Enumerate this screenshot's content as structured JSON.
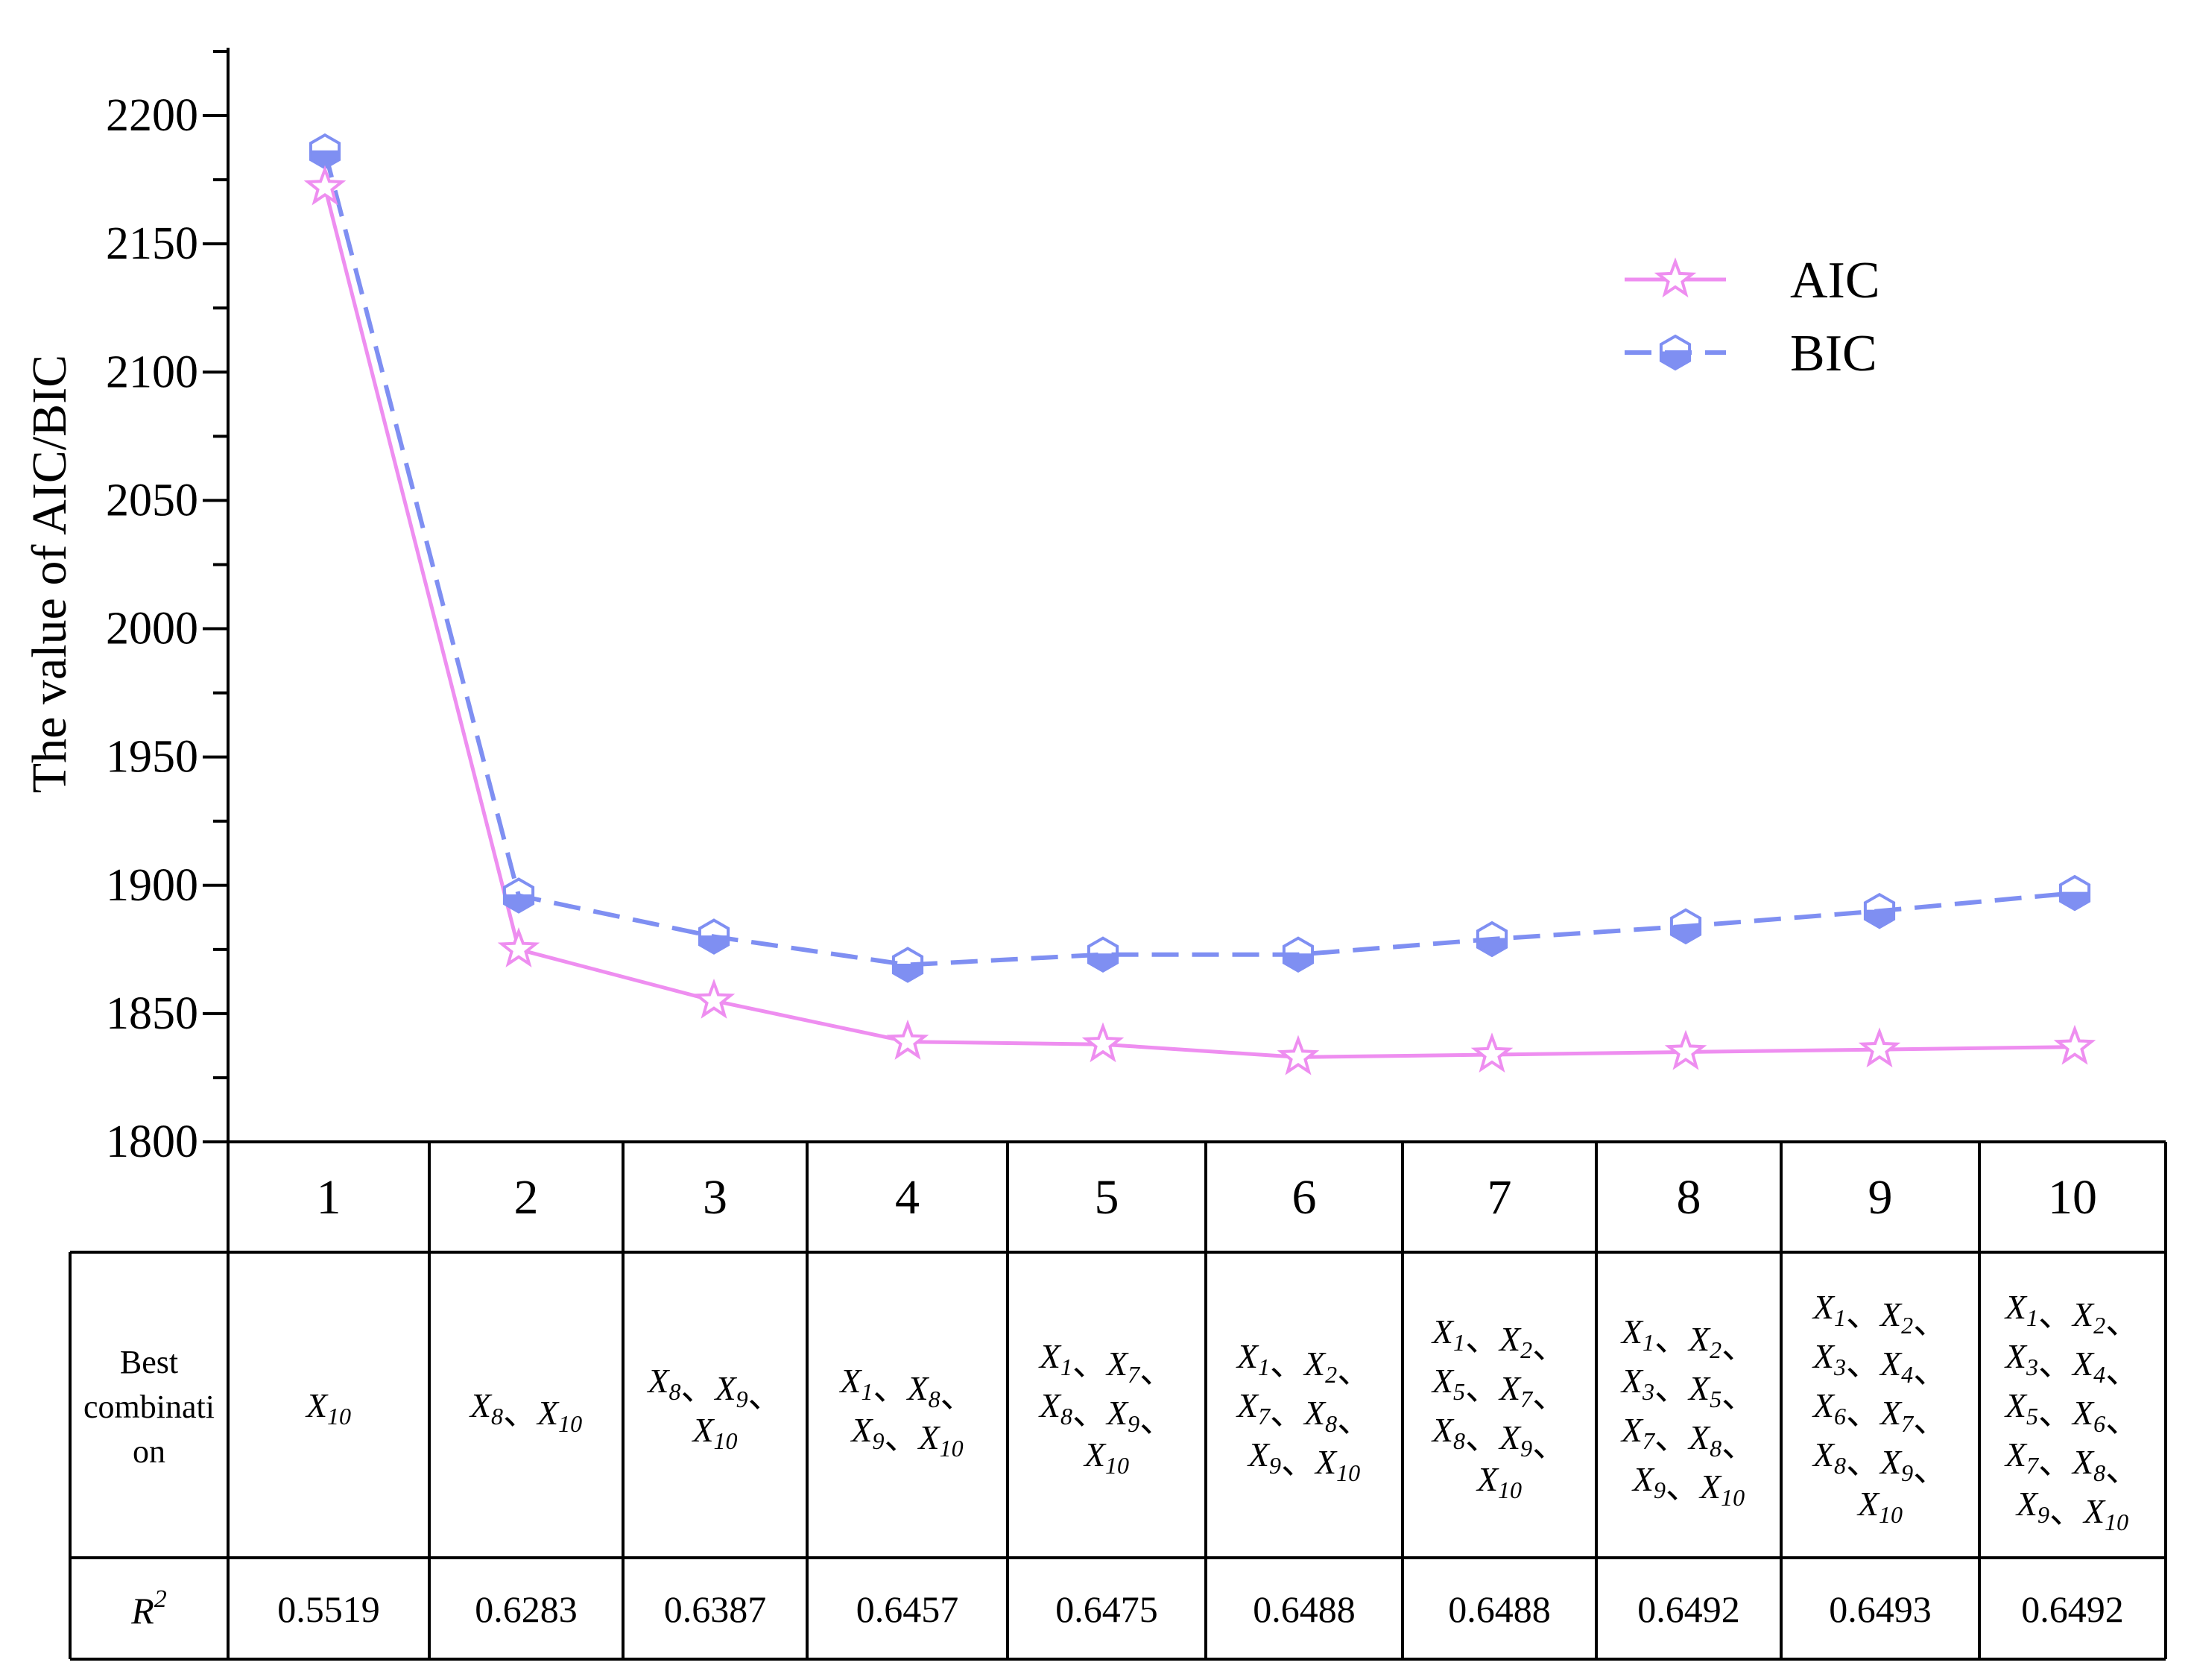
{
  "chart_data": {
    "type": "line",
    "title": "",
    "xlabel": "",
    "ylabel": "The value of AIC/BIC",
    "ylim": [
      1800,
      2225
    ],
    "yticks": [
      1800,
      1850,
      1900,
      1950,
      2000,
      2050,
      2100,
      2150,
      2200
    ],
    "categories": [
      "1",
      "2",
      "3",
      "4",
      "5",
      "6",
      "7",
      "8",
      "9",
      "10"
    ],
    "legend_position": "top-right",
    "series": [
      {
        "name": "AIC",
        "color": "#ee8ef0",
        "marker": "star",
        "line_style": "solid",
        "values": [
          2172,
          1875,
          1855,
          1839,
          1838,
          1833,
          1834,
          1835,
          1836,
          1837
        ]
      },
      {
        "name": "BIC",
        "color": "#7f8ff2",
        "marker": "half-filled-hexagon",
        "line_style": "dashed",
        "values": [
          2186,
          1896,
          1880,
          1869,
          1873,
          1873,
          1879,
          1884,
          1890,
          1897
        ]
      }
    ]
  },
  "table": {
    "combo_header": [
      "Best",
      "combinati",
      "on"
    ],
    "r2_header_base": "R",
    "r2_header_sup": "2",
    "combinations": [
      [
        [
          "X10"
        ]
      ],
      [
        [
          "X8",
          "X10"
        ]
      ],
      [
        [
          "X8",
          "X9",
          ""
        ],
        [
          "X10"
        ]
      ],
      [
        [
          "X1",
          "X8",
          ""
        ],
        [
          "X9",
          "X10"
        ]
      ],
      [
        [
          "X1",
          "X7",
          ""
        ],
        [
          "X8",
          "X9",
          ""
        ],
        [
          "X10"
        ]
      ],
      [
        [
          "X1",
          "X2",
          ""
        ],
        [
          "X7",
          "X8",
          ""
        ],
        [
          "X9",
          "X10"
        ]
      ],
      [
        [
          "X1",
          "X2",
          ""
        ],
        [
          "X5",
          "X7",
          ""
        ],
        [
          "X8",
          "X9",
          ""
        ],
        [
          "X10"
        ]
      ],
      [
        [
          "X1",
          "X2",
          ""
        ],
        [
          "X3",
          "X5",
          ""
        ],
        [
          "X7",
          "X8",
          ""
        ],
        [
          "X9",
          "X10"
        ]
      ],
      [
        [
          "X1",
          "X2",
          ""
        ],
        [
          "X3",
          "X4",
          ""
        ],
        [
          "X6",
          "X7",
          ""
        ],
        [
          "X8",
          "X9",
          ""
        ],
        [
          "X10"
        ]
      ],
      [
        [
          "X1",
          "X2",
          ""
        ],
        [
          "X3",
          "X4",
          ""
        ],
        [
          "X5",
          "X6",
          ""
        ],
        [
          "X7",
          "X8",
          ""
        ],
        [
          "X9",
          "X10"
        ]
      ]
    ],
    "r2_values": [
      "0.5519",
      "0.6283",
      "0.6387",
      "0.6457",
      "0.6475",
      "0.6488",
      "0.6488",
      "0.6492",
      "0.6493",
      "0.6492"
    ]
  }
}
